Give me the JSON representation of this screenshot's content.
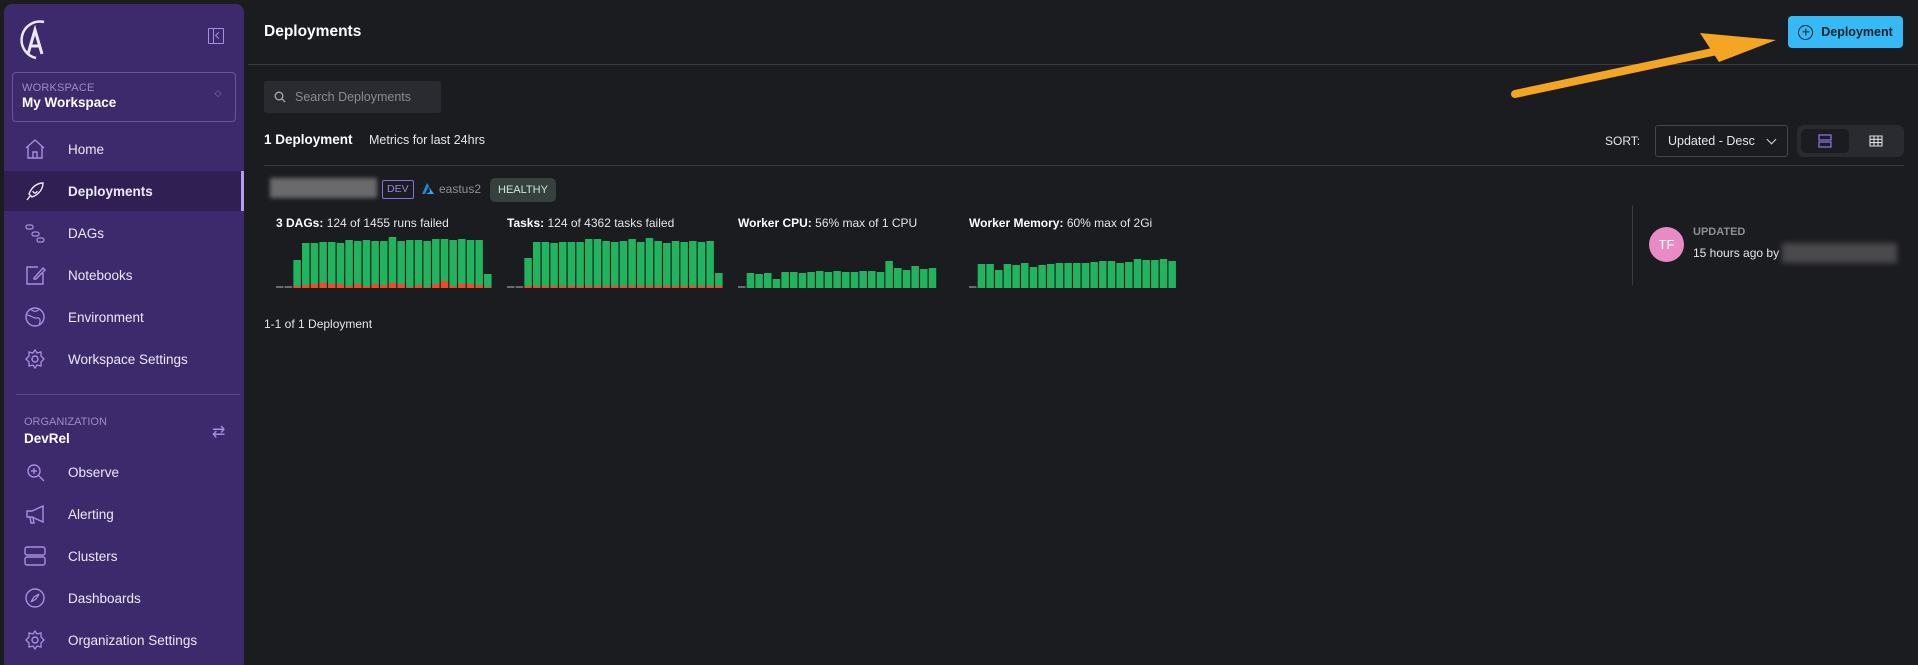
{
  "sidebar": {
    "workspace_label": "WORKSPACE",
    "workspace_name": "My Workspace",
    "workspace_items": [
      {
        "label": "Home",
        "icon": "home-icon"
      },
      {
        "label": "Deployments",
        "icon": "rocket-icon",
        "active": true
      },
      {
        "label": "DAGs",
        "icon": "dags-icon"
      },
      {
        "label": "Notebooks",
        "icon": "notebook-icon"
      },
      {
        "label": "Environment",
        "icon": "globe-icon"
      },
      {
        "label": "Workspace Settings",
        "icon": "gear-icon"
      }
    ],
    "organization_label": "ORGANIZATION",
    "organization_name": "DevRel",
    "organization_items": [
      {
        "label": "Observe",
        "icon": "observe-icon"
      },
      {
        "label": "Alerting",
        "icon": "megaphone-icon"
      },
      {
        "label": "Clusters",
        "icon": "clusters-icon"
      },
      {
        "label": "Dashboards",
        "icon": "compass-icon"
      },
      {
        "label": "Organization Settings",
        "icon": "gear-icon"
      }
    ]
  },
  "header": {
    "title": "Deployments",
    "add_button": "Deployment"
  },
  "search": {
    "placeholder": "Search Deployments",
    "value": ""
  },
  "list": {
    "count": "1 Deployment",
    "metrics_note": "Metrics for last 24hrs",
    "sort_label": "SORT:",
    "sort_value": "Updated - Desc",
    "view_mode": "list",
    "pager": "1-1 of 1 Deployment"
  },
  "deployment": {
    "env": "DEV",
    "region": "eastus2",
    "status": "HEALTHY",
    "metrics": [
      {
        "title": "3 DAGs:",
        "detail": "124 of 1455 runs failed"
      },
      {
        "title": "Tasks:",
        "detail": "124 of 4362 tasks failed"
      },
      {
        "title": "Worker CPU:",
        "detail": "56% max of 1 CPU"
      },
      {
        "title": "Worker Memory:",
        "detail": "60% max of 2Gi"
      }
    ],
    "updated_label": "UPDATED",
    "updated_value": "15 hours ago by",
    "avatar_initials": "TF"
  },
  "colors": {
    "accent": "#35baf6",
    "success": "#22b35e",
    "failed": "#f04a2c",
    "empty": "#6a6b70",
    "sidebar": "#3d2a6c",
    "annotation_arrow": "#f5a524"
  },
  "chart_data": [
    {
      "type": "bar",
      "title": "3 DAGs",
      "empty_leading": 2,
      "stacked": true,
      "series": [
        {
          "name": "success",
          "values": [
            26,
            42,
            41,
            41,
            42,
            41,
            46,
            43,
            46,
            43,
            44,
            46,
            43,
            47,
            45,
            46,
            45,
            42,
            46,
            45,
            44,
            45,
            13
          ]
        },
        {
          "name": "failed",
          "values": [
            2,
            3,
            4,
            5,
            4,
            4,
            2,
            4,
            2,
            4,
            3,
            5,
            4,
            1,
            3,
            1,
            4,
            7,
            2,
            4,
            4,
            3,
            1
          ]
        }
      ]
    },
    {
      "type": "bar",
      "title": "Tasks",
      "empty_leading": 2,
      "stacked": true,
      "series": [
        {
          "name": "success",
          "values": [
            28,
            44,
            44,
            43,
            44,
            44,
            44,
            47,
            47,
            45,
            44,
            45,
            47,
            44,
            48,
            45,
            43,
            45,
            44,
            45,
            44,
            45,
            13
          ]
        },
        {
          "name": "failed",
          "values": [
            2,
            2,
            2,
            2,
            2,
            2,
            2,
            2,
            2,
            2,
            2,
            2,
            2,
            2,
            2,
            2,
            2,
            2,
            2,
            2,
            2,
            2,
            2
          ]
        }
      ]
    },
    {
      "type": "bar",
      "title": "Worker CPU",
      "empty_leading": 1,
      "series": [
        {
          "values": [
            15,
            14,
            15,
            9,
            16,
            16,
            15,
            16,
            17,
            16,
            17,
            16,
            16,
            17,
            17,
            16,
            27,
            20,
            18,
            22,
            19,
            20
          ]
        }
      ]
    },
    {
      "type": "bar",
      "title": "Worker Memory",
      "empty_leading": 1,
      "series": [
        {
          "values": [
            24,
            24,
            18,
            24,
            23,
            25,
            21,
            23,
            24,
            25,
            25,
            25,
            25,
            26,
            27,
            27,
            25,
            26,
            29,
            28,
            28,
            29,
            27
          ]
        }
      ]
    }
  ]
}
